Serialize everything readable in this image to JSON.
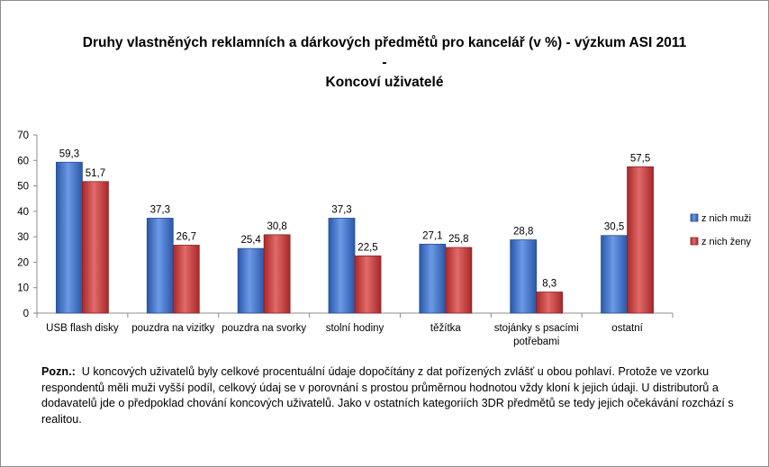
{
  "chart_data": {
    "type": "bar",
    "title_line1": "Druhy vlastněných reklamních a dárkových předmětů pro kancelář (v %) - výzkum ASI 2011",
    "title_line2": "-",
    "title_line3": "Koncoví uživatelé",
    "categories": [
      [
        "USB flash disky"
      ],
      [
        "pouzdra na vizitky"
      ],
      [
        "pouzdra na svorky"
      ],
      [
        "stolní hodiny"
      ],
      [
        "těžítka"
      ],
      [
        "stojánky s psacími",
        "potřebami"
      ],
      [
        "ostatní"
      ]
    ],
    "series": [
      {
        "name": "z nich muži",
        "color": "#3a6fc4",
        "values": [
          59.3,
          37.3,
          25.4,
          37.3,
          27.1,
          28.8,
          30.5
        ],
        "labels": [
          "59,3",
          "37,3",
          "25,4",
          "37,3",
          "27,1",
          "28,8",
          "30,5"
        ]
      },
      {
        "name": "z nich ženy",
        "color": "#c43a3a",
        "values": [
          51.7,
          26.7,
          30.8,
          22.5,
          25.8,
          8.3,
          57.5
        ],
        "labels": [
          "51,7",
          "26,7",
          "30,8",
          "22,5",
          "25,8",
          "8,3",
          "57,5"
        ]
      }
    ],
    "yticks": [
      "0",
      "10",
      "20",
      "30",
      "40",
      "50",
      "60",
      "70"
    ],
    "ylim": [
      0,
      70
    ],
    "xlabel": "",
    "ylabel": "",
    "legend_position": "right"
  },
  "note": {
    "label": "Pozn.:",
    "text": "U koncových uživatelů byly celkové procentuální údaje dopočítány z dat pořízených zvlášť u obou pohlaví. Protože ve vzorku respondentů měli muži vyšší podíl, celkový údaj se v porovnání s prostou průměrnou hodnotou vždy kloní k jejich údaji. U distributorů a dodavatelů jde o předpoklad chování koncových uživatelů. Jako v ostatních kategoriích 3DR předmětů se tedy jejich očekávání rozchází s realitou."
  }
}
